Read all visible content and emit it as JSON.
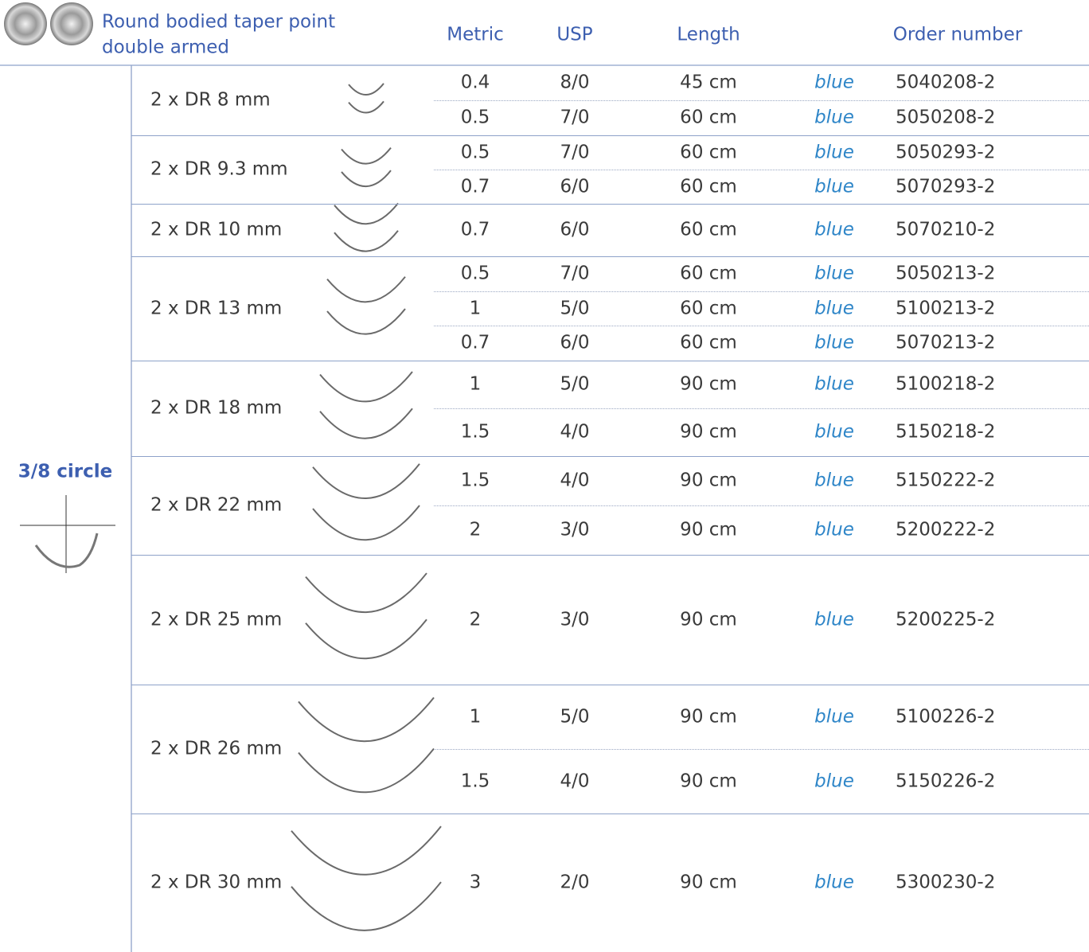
{
  "header": {
    "title_lines": [
      "Round bodied taper point",
      "double armed"
    ],
    "columns": [
      "Metric",
      "USP",
      "Length",
      "Order number"
    ]
  },
  "side_label": "3/8 circle",
  "groups": [
    {
      "needle": "2 x DR 8 mm",
      "rows": [
        [
          "0.4",
          "8/0",
          "45 cm",
          "blue",
          "5040208-2"
        ],
        [
          "0.5",
          "7/0",
          "60 cm",
          "blue",
          "5050208-2"
        ]
      ]
    },
    {
      "needle": "2 x DR 9.3 mm",
      "rows": [
        [
          "0.5",
          "7/0",
          "60 cm",
          "blue",
          "5050293-2"
        ],
        [
          "0.7",
          "6/0",
          "60 cm",
          "blue",
          "5070293-2"
        ]
      ]
    },
    {
      "needle": "2 x DR 10 mm",
      "rows": [
        [
          "0.7",
          "6/0",
          "60 cm",
          "blue",
          "5070210-2"
        ]
      ]
    },
    {
      "needle": "2 x DR 13 mm",
      "rows": [
        [
          "0.5",
          "7/0",
          "60 cm",
          "blue",
          "5050213-2"
        ],
        [
          "1",
          "5/0",
          "60 cm",
          "blue",
          "5100213-2"
        ],
        [
          "0.7",
          "6/0",
          "60 cm",
          "blue",
          "5070213-2"
        ]
      ]
    },
    {
      "needle": "2 x DR 18 mm",
      "rows": [
        [
          "1",
          "5/0",
          "90 cm",
          "blue",
          "5100218-2"
        ],
        [
          "1.5",
          "4/0",
          "90 cm",
          "blue",
          "5150218-2"
        ]
      ]
    },
    {
      "needle": "2 x DR 22 mm",
      "rows": [
        [
          "1.5",
          "4/0",
          "90 cm",
          "blue",
          "5150222-2"
        ],
        [
          "2",
          "3/0",
          "90 cm",
          "blue",
          "5200222-2"
        ]
      ]
    },
    {
      "needle": "2 x DR 25 mm",
      "rows": [
        [
          "2",
          "3/0",
          "90 cm",
          "blue",
          "5200225-2"
        ]
      ]
    },
    {
      "needle": "2 x DR 26 mm",
      "rows": [
        [
          "1",
          "5/0",
          "90 cm",
          "blue",
          "5100226-2"
        ],
        [
          "1.5",
          "4/0",
          "90 cm",
          "blue",
          "5150226-2"
        ]
      ]
    },
    {
      "needle": "2 x DR 30 mm",
      "rows": [
        [
          "3",
          "2/0",
          "90 cm",
          "blue",
          "5300230-2"
        ]
      ]
    }
  ]
}
